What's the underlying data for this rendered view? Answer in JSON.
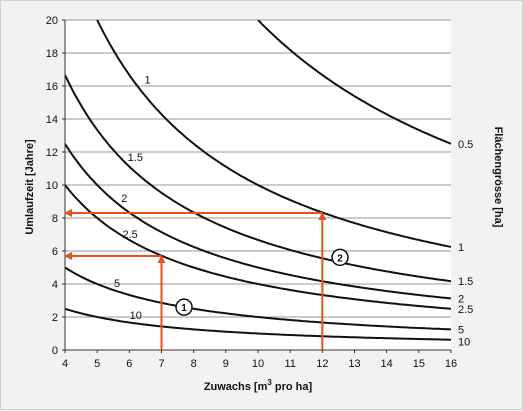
{
  "chart_data": {
    "type": "line",
    "xlabel_main": "Zuwachs [m",
    "xlabel_sup": "3",
    "xlabel_rest": " pro ha]",
    "ylabel": "Umlaufzeit  [Jahre]",
    "right_label": "Flächengrösse [ha]",
    "xlim": [
      4,
      16
    ],
    "ylim": [
      0,
      20
    ],
    "x_ticks": [
      "4",
      "5",
      "6",
      "7",
      "8",
      "9",
      "10",
      "11",
      "12",
      "13",
      "14",
      "15",
      "16"
    ],
    "y_ticks": [
      "0",
      "2",
      "4",
      "6",
      "8",
      "10",
      "12",
      "14",
      "16",
      "18",
      "20"
    ],
    "grid": "horizontal",
    "series": [
      {
        "name": "0.5",
        "k": 200,
        "label_left": "",
        "label_right": "0.5"
      },
      {
        "name": "1",
        "k": 100,
        "label_left": "1",
        "label_right": "1"
      },
      {
        "name": "1.5",
        "k": 66.7,
        "label_left": "1.5",
        "label_right": "1.5"
      },
      {
        "name": "2",
        "k": 50,
        "label_left": "2",
        "label_right": "2"
      },
      {
        "name": "2.5",
        "k": 40,
        "label_left": "2.5",
        "label_right": "2.5"
      },
      {
        "name": "5",
        "k": 20,
        "label_left": "5",
        "label_right": "5"
      },
      {
        "name": "10",
        "k": 10,
        "label_left": "10",
        "label_right": "10"
      }
    ],
    "examples": [
      {
        "marker": "1",
        "x": 7,
        "y": 5.7
      },
      {
        "marker": "2",
        "x": 12,
        "y": 8.3
      }
    ],
    "colors": {
      "curve": "#111111",
      "arrow": "#e8501e",
      "grid": "#9a9a9a",
      "marker_fill": "#ffffff"
    }
  }
}
